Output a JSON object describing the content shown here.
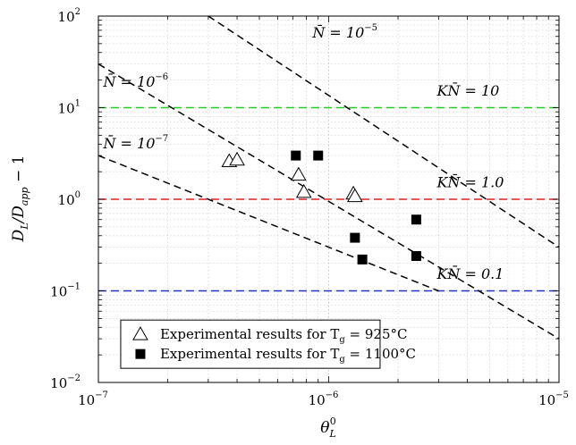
{
  "chart_data": {
    "type": "scatter",
    "title": "",
    "xlabel": "θ_L^0",
    "ylabel": "D_L/D_app − 1",
    "xscale": "log",
    "yscale": "log",
    "xlim": [
      1e-07,
      1e-05
    ],
    "ylim": [
      0.01,
      100
    ],
    "grid": true,
    "x_ticks": [
      {
        "value": 1e-07,
        "base": "10",
        "exp": "−7"
      },
      {
        "value": 1e-06,
        "base": "10",
        "exp": "−6"
      },
      {
        "value": 1e-05,
        "base": "10",
        "exp": "−5"
      }
    ],
    "y_ticks": [
      {
        "value": 0.01,
        "base": "10",
        "exp": "−2"
      },
      {
        "value": 0.1,
        "base": "10",
        "exp": "−1"
      },
      {
        "value": 1,
        "base": "10",
        "exp": "0"
      },
      {
        "value": 10,
        "base": "10",
        "exp": "1"
      },
      {
        "value": 100,
        "base": "10",
        "exp": "2"
      }
    ],
    "reference_lines": [
      {
        "label": "N̄ = 10",
        "label_exp": "−5",
        "color": "#000000",
        "style": "dashed",
        "points": [
          [
            3e-07,
            100
          ],
          [
            1e-05,
            0.3
          ]
        ],
        "label_at": [
          8.5e-07,
          58
        ]
      },
      {
        "label": "N̄ = 10",
        "label_exp": "−6",
        "color": "#000000",
        "style": "dashed",
        "points": [
          [
            1e-07,
            30
          ],
          [
            1e-05,
            0.03
          ]
        ],
        "label_at": [
          1.05e-07,
          17
        ]
      },
      {
        "label": "N̄ = 10",
        "label_exp": "−7",
        "color": "#000000",
        "style": "dashed",
        "points": [
          [
            1e-07,
            3
          ],
          [
            3e-06,
            0.1
          ]
        ],
        "label_at": [
          1.05e-07,
          3.6
        ]
      }
    ],
    "horizontal_lines": [
      {
        "label": "KN̄ = 10",
        "value": 10,
        "color": "#22cc22",
        "label_at": [
          2.95e-06,
          13.5
        ]
      },
      {
        "label": "KN̄ = 1.0",
        "value": 1.0,
        "color": "#dd2222",
        "label_at": [
          2.95e-06,
          1.35
        ]
      },
      {
        "label": "KN̄ = 0.1",
        "value": 0.1,
        "color": "#2233bb",
        "label_at": [
          2.95e-06,
          0.135
        ]
      }
    ],
    "series": [
      {
        "name": "Experimental results for T_g = 925°C",
        "marker": "triangle-open",
        "points": [
          [
            3.7e-07,
            2.6
          ],
          [
            4e-07,
            2.7
          ],
          [
            7.4e-07,
            1.85
          ],
          [
            7.8e-07,
            1.2
          ],
          [
            1.28e-06,
            1.15
          ],
          [
            1.3e-06,
            1.08
          ]
        ]
      },
      {
        "name": "Experimental results for T_g = 1100°C",
        "marker": "square-filled",
        "points": [
          [
            7.2e-07,
            3.0
          ],
          [
            9e-07,
            3.0
          ],
          [
            1.3e-06,
            0.38
          ],
          [
            1.4e-06,
            0.22
          ],
          [
            2.4e-06,
            0.6
          ],
          [
            2.4e-06,
            0.24
          ]
        ]
      }
    ],
    "legend": {
      "placement": "bottom-left",
      "entries": [
        {
          "text": "Experimental results for T",
          "sub": "g",
          "tail": " = 925°C"
        },
        {
          "text": "Experimental results for T",
          "sub": "g",
          "tail": " = 1100°C"
        }
      ]
    }
  }
}
